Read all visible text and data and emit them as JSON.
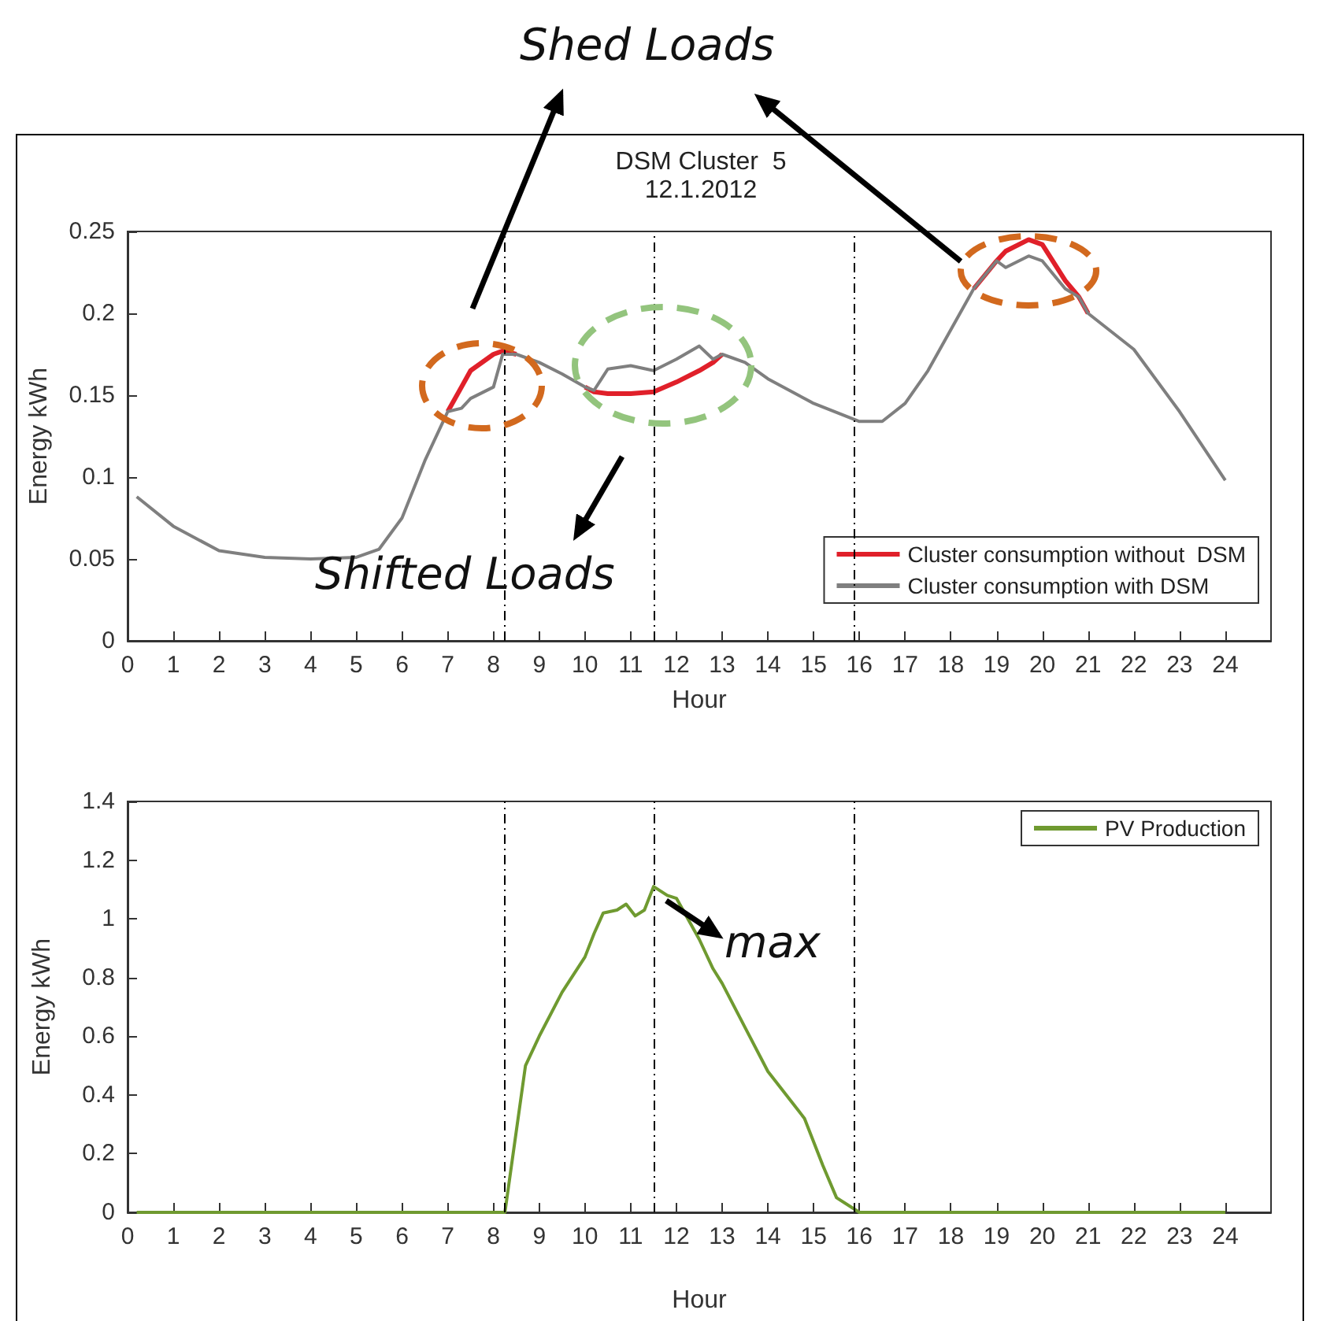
{
  "chart_data": [
    {
      "type": "line",
      "title": "DSM Cluster  5",
      "subtitle": "12.1.2012",
      "xlabel": "Hour",
      "ylabel": "Energy kWh",
      "annotations": [
        "Shed Loads",
        "Shifted Loads"
      ],
      "xlim": [
        0,
        25
      ],
      "xticks": [
        0,
        1,
        2,
        3,
        4,
        5,
        6,
        7,
        8,
        9,
        10,
        11,
        12,
        13,
        14,
        15,
        16,
        17,
        18,
        19,
        20,
        21,
        22,
        23,
        24
      ],
      "ylim": [
        0,
        0.25
      ],
      "yticks": [
        0,
        0.05,
        0.1,
        0.15,
        0.2,
        0.25
      ],
      "grid": false,
      "legend": "bottom right",
      "ref_lines": [
        {
          "axis": "x",
          "value": 8.25,
          "color": "#000000",
          "line_style": "dashed"
        },
        {
          "axis": "x",
          "value": 11.5,
          "color": "#000000",
          "line_style": "dashed"
        },
        {
          "axis": "x",
          "value": 15.9,
          "color": "#000000",
          "line_style": "dashed"
        }
      ],
      "series": [
        {
          "name": "Cluster consumption without  DSM",
          "color": "#e0202a",
          "x": [
            7,
            7.3,
            7.5,
            8,
            8.2,
            8.5,
            null,
            10,
            10.2,
            10.5,
            11,
            11.5,
            12,
            12.5,
            12.8,
            13,
            null,
            18.5,
            19,
            19.2,
            19.7,
            20,
            20.5,
            20.8,
            21
          ],
          "values": [
            0.14,
            0.155,
            0.165,
            0.175,
            0.177,
            0.175,
            null,
            0.155,
            0.152,
            0.151,
            0.151,
            0.152,
            0.158,
            0.165,
            0.17,
            0.175,
            null,
            0.215,
            0.232,
            0.238,
            0.245,
            0.242,
            0.22,
            0.21,
            0.2
          ]
        },
        {
          "name": "Cluster consumption with DSM",
          "color": "#7f7f7f",
          "x": [
            0.2,
            1,
            2,
            3,
            4,
            5,
            5.5,
            6,
            6.5,
            7,
            7.3,
            7.5,
            8,
            8.2,
            8.5,
            9,
            9.5,
            10,
            10.2,
            10.5,
            11,
            11.5,
            12,
            12.5,
            12.8,
            13,
            13.5,
            14,
            15,
            16,
            16.5,
            17,
            17.5,
            18,
            18.5,
            19,
            19.2,
            19.7,
            20,
            20.5,
            20.8,
            21,
            22,
            23,
            24
          ],
          "values": [
            0.088,
            0.07,
            0.055,
            0.051,
            0.05,
            0.051,
            0.056,
            0.075,
            0.11,
            0.14,
            0.142,
            0.148,
            0.155,
            0.175,
            0.175,
            0.17,
            0.163,
            0.155,
            0.153,
            0.166,
            0.168,
            0.165,
            0.172,
            0.18,
            0.172,
            0.175,
            0.17,
            0.16,
            0.145,
            0.134,
            0.134,
            0.145,
            0.165,
            0.19,
            0.215,
            0.232,
            0.228,
            0.235,
            0.232,
            0.215,
            0.21,
            0.2,
            0.178,
            0.14,
            0.098
          ]
        }
      ]
    },
    {
      "type": "line",
      "xlabel": "Hour",
      "ylabel": "Energy kWh",
      "annotations": [
        "max"
      ],
      "xlim": [
        0,
        25
      ],
      "xticks": [
        0,
        1,
        2,
        3,
        4,
        5,
        6,
        7,
        8,
        9,
        10,
        11,
        12,
        13,
        14,
        15,
        16,
        17,
        18,
        19,
        20,
        21,
        22,
        23,
        24
      ],
      "ylim": [
        0,
        1.4
      ],
      "yticks": [
        0,
        0.2,
        0.4,
        0.6,
        0.8,
        1,
        1.2,
        1.4
      ],
      "grid": false,
      "legend": "top right",
      "ref_lines": [
        {
          "axis": "x",
          "value": 8.25,
          "color": "#000000",
          "line_style": "dashed"
        },
        {
          "axis": "x",
          "value": 11.5,
          "color": "#000000",
          "line_style": "dashed"
        },
        {
          "axis": "x",
          "value": 15.9,
          "color": "#000000",
          "line_style": "dashed"
        }
      ],
      "series": [
        {
          "name": "PV Production",
          "color": "#6f9a30",
          "x": [
            0.2,
            8.25,
            8.7,
            9,
            9.5,
            10,
            10.2,
            10.4,
            10.7,
            10.9,
            11.1,
            11.3,
            11.5,
            11.8,
            12,
            12.5,
            12.8,
            13,
            13.5,
            14,
            14.5,
            14.8,
            15.2,
            15.5,
            16,
            24
          ],
          "values": [
            0,
            0,
            0.5,
            0.6,
            0.75,
            0.87,
            0.95,
            1.02,
            1.03,
            1.05,
            1.01,
            1.03,
            1.11,
            1.08,
            1.07,
            0.93,
            0.83,
            0.78,
            0.63,
            0.48,
            0.38,
            0.32,
            0.16,
            0.05,
            0,
            0
          ]
        }
      ]
    }
  ]
}
